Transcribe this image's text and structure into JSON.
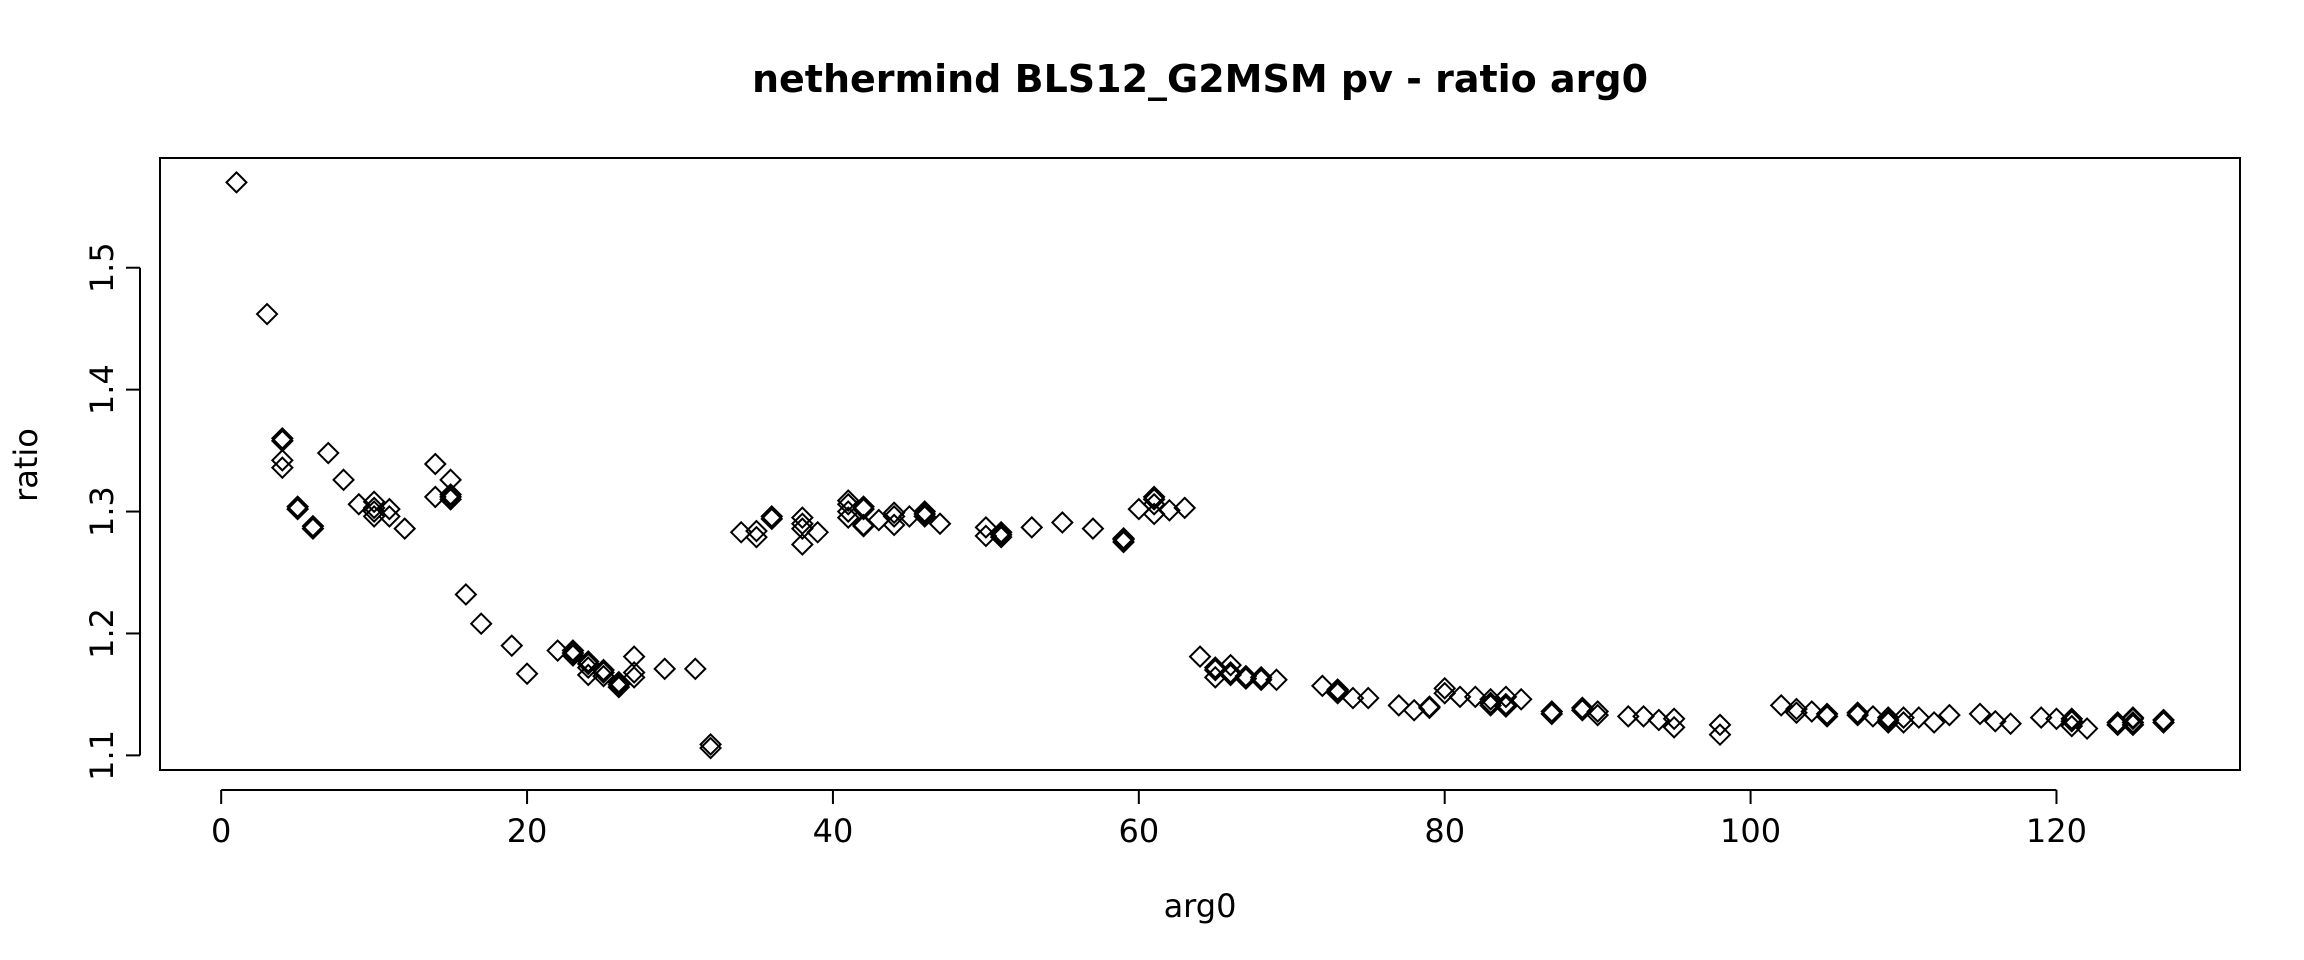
{
  "chart_data": {
    "type": "scatter",
    "title": "nethermind BLS12_G2MSM pv - ratio arg0",
    "xlabel": "arg0",
    "ylabel": "ratio",
    "xlim": [
      -4,
      132
    ],
    "ylim": [
      1.088,
      1.59
    ],
    "x_ticks": [
      0,
      20,
      40,
      60,
      80,
      100,
      120
    ],
    "y_ticks": [
      1.1,
      1.2,
      1.3,
      1.4,
      1.5
    ],
    "x_tick_labels": [
      "0",
      "20",
      "40",
      "60",
      "80",
      "100",
      "120"
    ],
    "y_tick_labels": [
      "1.1",
      "1.2",
      "1.3",
      "1.4",
      "1.5"
    ],
    "marker": "open-diamond",
    "grid": false,
    "legend": "none",
    "points": [
      [
        1,
        1.57
      ],
      [
        3,
        1.462
      ],
      [
        4,
        1.358
      ],
      [
        4,
        1.36
      ],
      [
        4,
        1.342
      ],
      [
        4,
        1.336
      ],
      [
        5,
        1.304
      ],
      [
        5,
        1.302
      ],
      [
        6,
        1.288
      ],
      [
        6,
        1.286
      ],
      [
        7,
        1.348
      ],
      [
        8,
        1.326
      ],
      [
        9,
        1.306
      ],
      [
        10,
        1.3
      ],
      [
        10,
        1.303
      ],
      [
        10,
        1.308
      ],
      [
        10,
        1.296
      ],
      [
        11,
        1.302
      ],
      [
        11,
        1.296
      ],
      [
        12,
        1.286
      ],
      [
        14,
        1.339
      ],
      [
        14,
        1.312
      ],
      [
        15,
        1.326
      ],
      [
        15,
        1.314
      ],
      [
        15,
        1.31
      ],
      [
        15,
        1.312
      ],
      [
        16,
        1.232
      ],
      [
        17,
        1.208
      ],
      [
        19,
        1.19
      ],
      [
        20,
        1.167
      ],
      [
        22,
        1.186
      ],
      [
        23,
        1.184
      ],
      [
        23,
        1.186
      ],
      [
        23,
        1.182
      ],
      [
        24,
        1.177
      ],
      [
        24,
        1.172
      ],
      [
        24,
        1.166
      ],
      [
        24,
        1.175
      ],
      [
        25,
        1.168
      ],
      [
        25,
        1.17
      ],
      [
        25,
        1.165
      ],
      [
        26,
        1.16
      ],
      [
        26,
        1.156
      ],
      [
        26,
        1.158
      ],
      [
        27,
        1.181
      ],
      [
        27,
        1.168
      ],
      [
        27,
        1.164
      ],
      [
        29,
        1.171
      ],
      [
        31,
        1.171
      ],
      [
        32,
        1.109
      ],
      [
        32,
        1.106
      ],
      [
        34,
        1.283
      ],
      [
        35,
        1.284
      ],
      [
        35,
        1.279
      ],
      [
        36,
        1.294
      ],
      [
        36,
        1.296
      ],
      [
        38,
        1.295
      ],
      [
        38,
        1.29
      ],
      [
        38,
        1.286
      ],
      [
        38,
        1.273
      ],
      [
        39,
        1.283
      ],
      [
        41,
        1.309
      ],
      [
        41,
        1.306
      ],
      [
        41,
        1.295
      ],
      [
        41,
        1.3
      ],
      [
        42,
        1.304
      ],
      [
        42,
        1.302
      ],
      [
        42,
        1.288
      ],
      [
        42,
        1.289
      ],
      [
        43,
        1.293
      ],
      [
        44,
        1.299
      ],
      [
        44,
        1.296
      ],
      [
        44,
        1.289
      ],
      [
        45,
        1.296
      ],
      [
        46,
        1.298
      ],
      [
        46,
        1.296
      ],
      [
        46,
        1.3
      ],
      [
        47,
        1.29
      ],
      [
        50,
        1.287
      ],
      [
        50,
        1.28
      ],
      [
        51,
        1.281
      ],
      [
        51,
        1.279
      ],
      [
        51,
        1.283
      ],
      [
        53,
        1.287
      ],
      [
        55,
        1.291
      ],
      [
        57,
        1.286
      ],
      [
        59,
        1.277
      ],
      [
        59,
        1.275
      ],
      [
        59,
        1.278
      ],
      [
        60,
        1.302
      ],
      [
        61,
        1.31
      ],
      [
        61,
        1.306
      ],
      [
        61,
        1.312
      ],
      [
        61,
        1.298
      ],
      [
        62,
        1.301
      ],
      [
        63,
        1.303
      ],
      [
        64,
        1.181
      ],
      [
        65,
        1.172
      ],
      [
        65,
        1.164
      ],
      [
        65,
        1.17
      ],
      [
        66,
        1.174
      ],
      [
        66,
        1.166
      ],
      [
        66,
        1.168
      ],
      [
        67,
        1.163
      ],
      [
        67,
        1.165
      ],
      [
        68,
        1.162
      ],
      [
        68,
        1.164
      ],
      [
        69,
        1.162
      ],
      [
        72,
        1.157
      ],
      [
        73,
        1.154
      ],
      [
        73,
        1.151
      ],
      [
        73,
        1.153
      ],
      [
        74,
        1.147
      ],
      [
        75,
        1.147
      ],
      [
        77,
        1.141
      ],
      [
        78,
        1.137
      ],
      [
        79,
        1.14
      ],
      [
        79,
        1.139
      ],
      [
        80,
        1.155
      ],
      [
        80,
        1.151
      ],
      [
        81,
        1.148
      ],
      [
        82,
        1.148
      ],
      [
        83,
        1.146
      ],
      [
        83,
        1.141
      ],
      [
        83,
        1.143
      ],
      [
        84,
        1.148
      ],
      [
        84,
        1.14
      ],
      [
        84,
        1.142
      ],
      [
        85,
        1.146
      ],
      [
        87,
        1.136
      ],
      [
        87,
        1.134
      ],
      [
        89,
        1.139
      ],
      [
        89,
        1.137
      ],
      [
        90,
        1.136
      ],
      [
        90,
        1.133
      ],
      [
        92,
        1.132
      ],
      [
        93,
        1.132
      ],
      [
        94,
        1.129
      ],
      [
        95,
        1.13
      ],
      [
        95,
        1.123
      ],
      [
        98,
        1.125
      ],
      [
        98,
        1.117
      ],
      [
        102,
        1.141
      ],
      [
        103,
        1.138
      ],
      [
        103,
        1.135
      ],
      [
        104,
        1.136
      ],
      [
        105,
        1.134
      ],
      [
        105,
        1.132
      ],
      [
        107,
        1.135
      ],
      [
        107,
        1.133
      ],
      [
        108,
        1.132
      ],
      [
        109,
        1.131
      ],
      [
        109,
        1.127
      ],
      [
        109,
        1.129
      ],
      [
        110,
        1.131
      ],
      [
        110,
        1.127
      ],
      [
        111,
        1.131
      ],
      [
        112,
        1.127
      ],
      [
        113,
        1.133
      ],
      [
        115,
        1.134
      ],
      [
        116,
        1.128
      ],
      [
        117,
        1.126
      ],
      [
        119,
        1.131
      ],
      [
        120,
        1.13
      ],
      [
        121,
        1.13
      ],
      [
        121,
        1.124
      ],
      [
        121,
        1.128
      ],
      [
        122,
        1.122
      ],
      [
        124,
        1.127
      ],
      [
        124,
        1.125
      ],
      [
        125,
        1.13
      ],
      [
        125,
        1.127
      ],
      [
        125,
        1.125
      ],
      [
        125,
        1.131
      ],
      [
        127,
        1.129
      ],
      [
        127,
        1.127
      ]
    ]
  }
}
